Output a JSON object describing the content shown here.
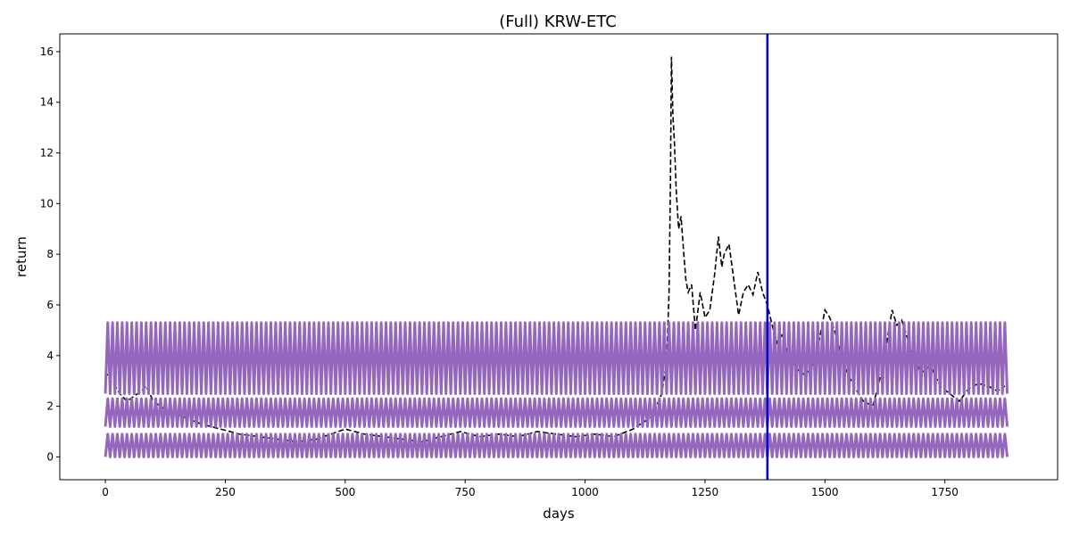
{
  "chart_data": {
    "type": "line",
    "title": "(Full) KRW-ETC",
    "xlabel": "days",
    "ylabel": "return",
    "xlim": [
      -95,
      1985
    ],
    "ylim": [
      -0.9,
      16.7
    ],
    "xticks": [
      0,
      250,
      500,
      750,
      1000,
      1250,
      1500,
      1750
    ],
    "yticks": [
      0,
      2,
      4,
      6,
      8,
      10,
      12,
      14,
      16
    ],
    "grid": false,
    "legend": "none",
    "vline": {
      "x": 1380,
      "color": "#0000cc"
    },
    "series": [
      {
        "style": "dashed",
        "color": "#000000",
        "x": [
          0,
          10,
          20,
          30,
          45,
          60,
          75,
          85,
          100,
          130,
          160,
          200,
          240,
          280,
          320,
          360,
          400,
          440,
          470,
          500,
          540,
          580,
          620,
          660,
          700,
          740,
          780,
          820,
          860,
          900,
          940,
          980,
          1020,
          1060,
          1100,
          1140,
          1160,
          1170,
          1175,
          1178,
          1180,
          1183,
          1186,
          1190,
          1195,
          1200,
          1205,
          1210,
          1215,
          1222,
          1230,
          1240,
          1250,
          1260,
          1270,
          1278,
          1285,
          1290,
          1300,
          1310,
          1320,
          1330,
          1340,
          1350,
          1360,
          1370,
          1380,
          1390,
          1400,
          1410,
          1420,
          1440,
          1460,
          1480,
          1500,
          1510,
          1520,
          1540,
          1560,
          1580,
          1600,
          1620,
          1640,
          1650,
          1660,
          1670,
          1680,
          1700,
          1720,
          1740,
          1760,
          1780,
          1800,
          1820,
          1840,
          1860,
          1875
        ],
        "y": [
          3.4,
          3.0,
          2.8,
          2.5,
          2.2,
          2.4,
          2.6,
          2.8,
          2.2,
          1.8,
          1.6,
          1.3,
          1.1,
          0.9,
          0.8,
          0.7,
          0.6,
          0.7,
          0.9,
          1.1,
          0.9,
          0.8,
          0.7,
          0.6,
          0.8,
          1.0,
          0.8,
          0.9,
          0.8,
          1.0,
          0.9,
          0.8,
          0.9,
          0.8,
          1.1,
          1.6,
          2.5,
          3.8,
          6.5,
          11.0,
          15.8,
          13.5,
          12.5,
          10.5,
          9.0,
          9.5,
          8.2,
          7.0,
          6.5,
          6.8,
          5.0,
          6.5,
          5.5,
          5.8,
          7.2,
          8.7,
          7.5,
          8.0,
          8.4,
          7.0,
          5.6,
          6.5,
          6.8,
          6.4,
          7.3,
          6.5,
          6.0,
          5.2,
          4.5,
          4.8,
          4.2,
          3.5,
          3.2,
          3.8,
          5.8,
          5.5,
          5.0,
          3.6,
          2.8,
          2.2,
          2.0,
          3.5,
          5.8,
          5.2,
          5.4,
          4.8,
          4.2,
          3.3,
          3.6,
          2.8,
          2.5,
          2.2,
          2.7,
          2.9,
          2.8,
          2.6,
          2.8
        ]
      },
      {
        "style": "solid",
        "color": "#9467bd",
        "kind": "oscillating-band",
        "x_range": [
          0,
          1880
        ],
        "period": 10,
        "y_range": [
          2.5,
          5.3
        ]
      },
      {
        "style": "solid",
        "color": "#9467bd",
        "kind": "oscillating-band",
        "x_range": [
          0,
          1880
        ],
        "period": 10,
        "y_range": [
          1.2,
          2.3
        ]
      },
      {
        "style": "solid",
        "color": "#9467bd",
        "kind": "oscillating-band",
        "x_range": [
          0,
          1880
        ],
        "period": 10,
        "y_range": [
          0.0,
          0.9
        ]
      }
    ]
  }
}
